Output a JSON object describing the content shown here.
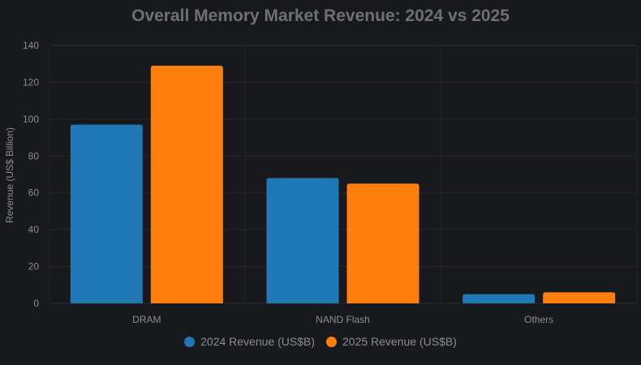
{
  "chart_data": {
    "type": "bar",
    "title": "Overall Memory Market Revenue: 2024 vs 2025",
    "xlabel": "",
    "ylabel": "Revenue (US$ Billion)",
    "categories": [
      "DRAM",
      "NAND Flash",
      "Others"
    ],
    "series": [
      {
        "name": "2024 Revenue (US$B)",
        "values": [
          97,
          68,
          5
        ],
        "color": "#1f77b4"
      },
      {
        "name": "2025 Revenue (US$B)",
        "values": [
          129,
          65,
          6
        ],
        "color": "#ff7f0e"
      }
    ],
    "ylim": [
      0,
      140
    ],
    "yticks": [
      0,
      20,
      40,
      60,
      80,
      100,
      120,
      140
    ],
    "grid": true,
    "legend": "bottom-center",
    "background": "#18191c"
  }
}
